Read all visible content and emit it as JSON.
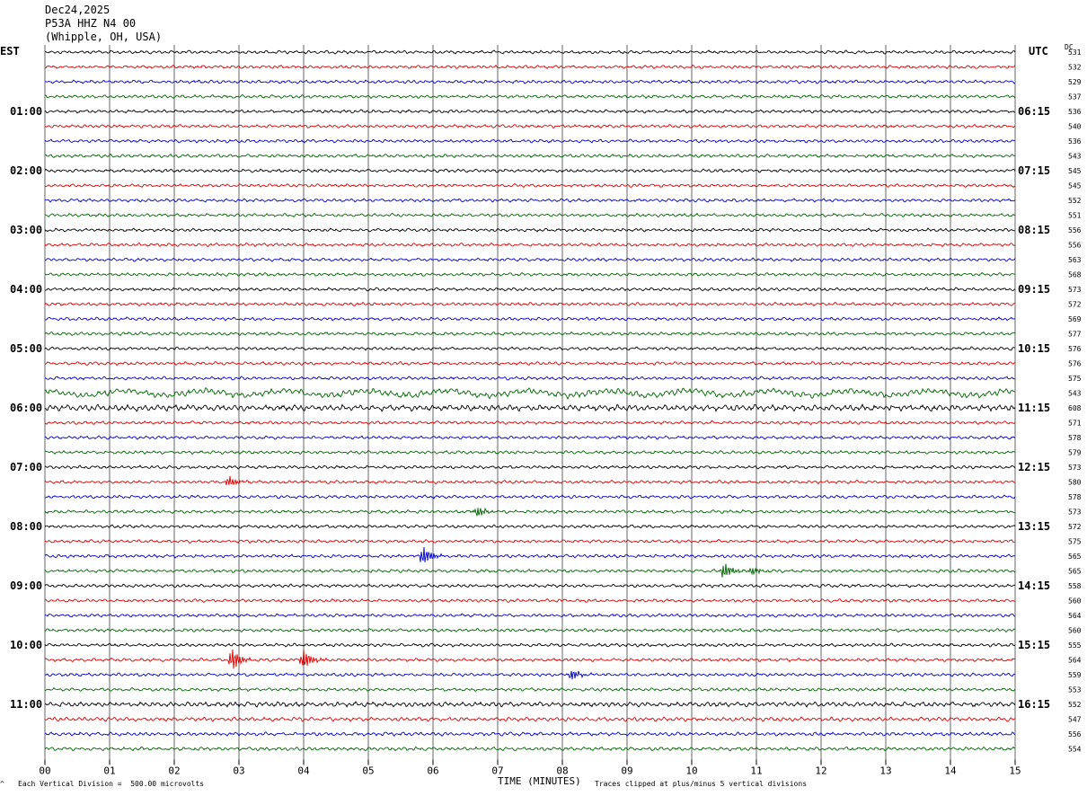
{
  "header": {
    "date": "Dec24,2025",
    "station": "P53A HHZ N4 00",
    "location": "(Whipple, OH, USA)"
  },
  "left_axis_label": "EST",
  "right_axis_label": "UTC",
  "dc_label": "DC",
  "footer": {
    "scale_note": "Each Vertical Division =  500.00 microvolts",
    "xlabel": "TIME (MINUTES)",
    "clip_note": "Traces clipped at plus/minus 5 vertical divisions"
  },
  "colors": {
    "black": "#000000",
    "red": "#dd0000",
    "blue": "#0000cc",
    "green": "#006600",
    "grid": "#000000"
  },
  "chart_data": {
    "type": "line",
    "title": "",
    "xlabel": "TIME (MINUTES)",
    "xlim": [
      0,
      15
    ],
    "x_ticks": [
      "00",
      "01",
      "02",
      "03",
      "04",
      "05",
      "06",
      "07",
      "08",
      "09",
      "10",
      "11",
      "12",
      "13",
      "14",
      "15"
    ],
    "row_minutes": 15,
    "trace_color_cycle": [
      "black",
      "red",
      "blue",
      "green"
    ],
    "left_hour_labels": [
      "01:00",
      "02:00",
      "03:00",
      "04:00",
      "05:00",
      "06:00",
      "07:00",
      "08:00",
      "09:00",
      "10:00",
      "11:00"
    ],
    "right_hour_labels": [
      "06:15",
      "07:15",
      "08:15",
      "09:15",
      "10:15",
      "11:15",
      "12:15",
      "13:15",
      "14:15",
      "15:15",
      "16:15"
    ],
    "hour_label_first_row": 4,
    "hour_label_every_rows": 4,
    "dc_offsets": [
      531,
      532,
      529,
      537,
      536,
      540,
      536,
      543,
      545,
      545,
      552,
      551,
      556,
      556,
      563,
      568,
      573,
      572,
      569,
      577,
      576,
      576,
      575,
      543,
      608,
      571,
      578,
      579,
      573,
      580,
      578,
      573,
      572,
      575,
      565,
      565,
      558,
      560,
      564,
      560,
      555,
      564,
      559,
      553,
      552,
      547,
      556,
      554
    ],
    "noisy_rows": [
      {
        "row": 23,
        "amplitude": 3.2
      },
      {
        "row": 24,
        "amplitude": 3.0
      },
      {
        "row": 25,
        "amplitude": 1.6
      },
      {
        "row": 44,
        "amplitude": 2.4
      },
      {
        "row": 45,
        "amplitude": 2.0
      },
      {
        "row": 46,
        "amplitude": 1.8
      },
      {
        "row": 47,
        "amplitude": 1.8
      }
    ],
    "events": [
      {
        "row": 29,
        "minute": 2.85,
        "amplitude": 6
      },
      {
        "row": 31,
        "minute": 6.7,
        "amplitude": 6
      },
      {
        "row": 34,
        "minute": 5.85,
        "amplitude": 11
      },
      {
        "row": 35,
        "minute": 10.5,
        "amplitude": 9
      },
      {
        "row": 35,
        "minute": 10.95,
        "amplitude": 4
      },
      {
        "row": 41,
        "minute": 2.9,
        "amplitude": 13
      },
      {
        "row": 41,
        "minute": 4.0,
        "amplitude": 11
      },
      {
        "row": 42,
        "minute": 8.15,
        "amplitude": 6
      }
    ]
  }
}
